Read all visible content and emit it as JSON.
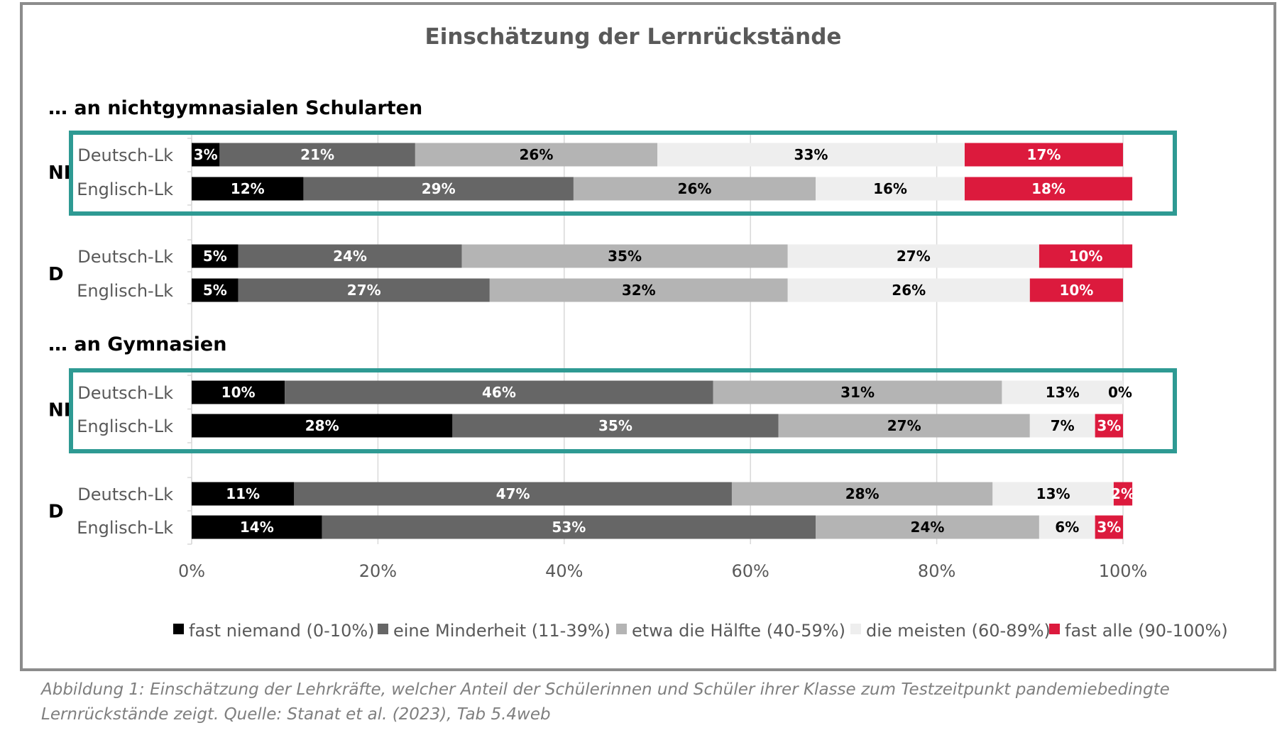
{
  "chart_data": {
    "type": "bar",
    "orientation": "horizontal",
    "stacked": true,
    "title": "Einschätzung der Lernrückstände",
    "xlim": [
      0,
      100
    ],
    "x_ticks": [
      "0%",
      "20%",
      "40%",
      "60%",
      "80%",
      "100%"
    ],
    "grid": true,
    "legend_position": "bottom",
    "series": [
      {
        "name": "fast niemand (0-10%)",
        "color": "#000000",
        "label_color": "#ffffff"
      },
      {
        "name": "eine Minderheit (11-39%)",
        "color": "#666666",
        "label_color": "#ffffff"
      },
      {
        "name": "etwa die Hälfte (40-59%)",
        "color": "#b4b4b4",
        "label_color": "#000000"
      },
      {
        "name": "die meisten (60-89%)",
        "color": "#eeeeee",
        "label_color": "#000000"
      },
      {
        "name": "fast alle (90-100%)",
        "color": "#dc1a3d",
        "label_color": "#ffffff"
      }
    ],
    "sections": [
      {
        "title": "… an nichtgymnasialen Schularten",
        "groups": [
          {
            "label": "NI",
            "highlighted": true,
            "rows": [
              {
                "category": "Deutsch-Lk",
                "values": [
                  3,
                  21,
                  26,
                  33,
                  17
                ],
                "labels": [
                  "3%",
                  "21%",
                  "26%",
                  "33%",
                  "17%"
                ]
              },
              {
                "category": "Englisch-Lk",
                "values": [
                  12,
                  29,
                  26,
                  16,
                  18
                ],
                "labels": [
                  "12%",
                  "29%",
                  "26%",
                  "16%",
                  "18%"
                ]
              }
            ]
          },
          {
            "label": "D",
            "highlighted": false,
            "rows": [
              {
                "category": "Deutsch-Lk",
                "values": [
                  5,
                  24,
                  35,
                  27,
                  10
                ],
                "labels": [
                  "5%",
                  "24%",
                  "35%",
                  "27%",
                  "10%"
                ]
              },
              {
                "category": "Englisch-Lk",
                "values": [
                  5,
                  27,
                  32,
                  26,
                  10
                ],
                "labels": [
                  "5%",
                  "27%",
                  "32%",
                  "26%",
                  "10%"
                ]
              }
            ]
          }
        ]
      },
      {
        "title": "… an Gymnasien",
        "groups": [
          {
            "label": "NI",
            "highlighted": true,
            "rows": [
              {
                "category": "Deutsch-Lk",
                "values": [
                  10,
                  46,
                  31,
                  13,
                  0
                ],
                "labels": [
                  "10%",
                  "46%",
                  "31%",
                  "13%",
                  "0%"
                ]
              },
              {
                "category": "Englisch-Lk",
                "values": [
                  28,
                  35,
                  27,
                  7,
                  3
                ],
                "labels": [
                  "28%",
                  "35%",
                  "27%",
                  "7%",
                  "3%"
                ]
              }
            ]
          },
          {
            "label": "D",
            "highlighted": false,
            "rows": [
              {
                "category": "Deutsch-Lk",
                "values": [
                  11,
                  47,
                  28,
                  13,
                  2
                ],
                "labels": [
                  "11%",
                  "47%",
                  "28%",
                  "13%",
                  "2%"
                ]
              },
              {
                "category": "Englisch-Lk",
                "values": [
                  14,
                  53,
                  24,
                  6,
                  3
                ],
                "labels": [
                  "14%",
                  "53%",
                  "24%",
                  "6%",
                  "3%"
                ]
              }
            ]
          }
        ]
      }
    ],
    "highlight_color": "#2e9a93",
    "axis_color": "#d9d9d9"
  },
  "caption": "Abbildung 1: Einschätzung der Lehrkräfte, welcher Anteil der Schülerinnen und Schüler ihrer Klasse zum Testzeitpunkt pandemiebedingte Lernrückstände zeigt. Quelle: Stanat et al. (2023), Tab 5.4web"
}
